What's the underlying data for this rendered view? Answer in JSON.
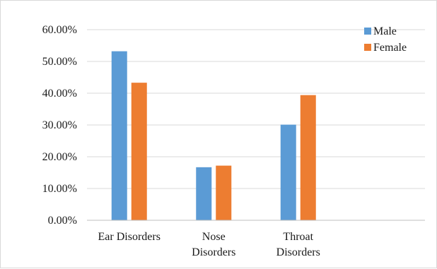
{
  "chart_data": {
    "type": "bar",
    "categories": [
      [
        "Ear Disorders"
      ],
      [
        "Nose",
        "Disorders"
      ],
      [
        "Throat",
        "Disorders"
      ]
    ],
    "series": [
      {
        "name": "Male",
        "color": "#5b9bd5",
        "values": [
          53.2,
          16.7,
          30.1
        ]
      },
      {
        "name": "Female",
        "color": "#ed7d31",
        "values": [
          43.3,
          17.2,
          39.4
        ]
      }
    ],
    "ylim": [
      0,
      60
    ],
    "yticks": [
      "0.00%",
      "10.00%",
      "20.00%",
      "30.00%",
      "40.00%",
      "50.00%",
      "60.00%"
    ],
    "grid": true,
    "legend_position": "top-right"
  }
}
